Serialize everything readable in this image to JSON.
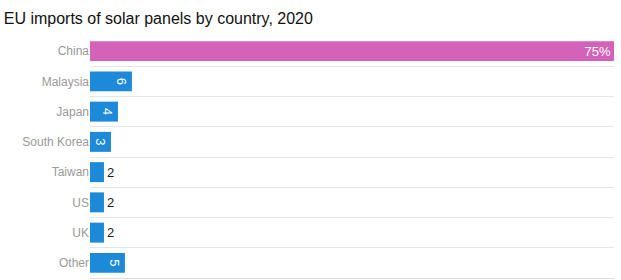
{
  "chart_data": {
    "type": "bar",
    "title": "EU imports of solar panels by country, 2020",
    "orientation": "horizontal",
    "categories": [
      "China",
      "Malaysia",
      "Japan",
      "South Korea",
      "Taiwan",
      "US",
      "UK",
      "Other"
    ],
    "values": [
      75,
      6,
      4,
      3,
      2,
      2,
      2,
      5
    ],
    "value_labels": [
      "75%",
      "6",
      "4",
      "3",
      "2",
      "2",
      "2",
      "5"
    ],
    "colors": [
      "#d462b8",
      "#1c8ad8",
      "#1c8ad8",
      "#1c8ad8",
      "#1c8ad8",
      "#1c8ad8",
      "#1c8ad8",
      "#1c8ad8"
    ],
    "xlim": [
      0,
      75
    ],
    "xticks": [],
    "tick_labels": "y",
    "grid": true,
    "data_labels": true
  }
}
